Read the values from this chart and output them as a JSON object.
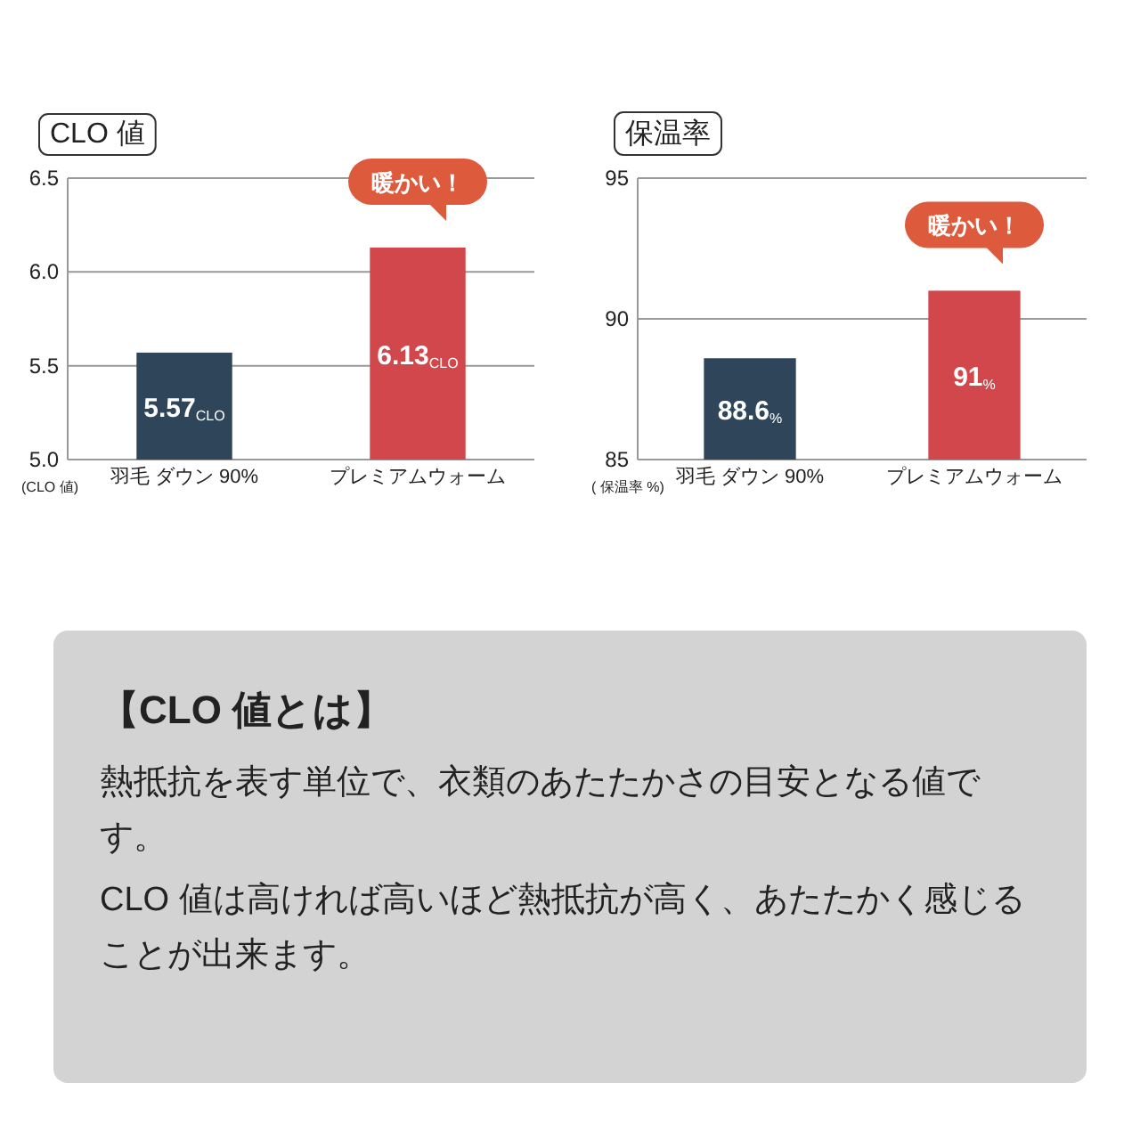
{
  "chart_data": [
    {
      "type": "bar",
      "title": "CLO 値",
      "ylabel": "(CLO 値)",
      "categories": [
        "羽毛 ダウン 90%",
        "プレミアムウォーム"
      ],
      "colors": [
        "#2f4559",
        "#d2474b"
      ],
      "values": [
        5.57,
        6.13
      ],
      "value_labels": [
        "5.57$_{CLO}$",
        "6.13$_{CLO}$"
      ],
      "ylim": [
        5.0,
        6.5
      ],
      "yticks": [
        {
          "value": 5.0,
          "label": "5.0"
        },
        5.5,
        {
          "value": 6.0,
          "label": "6.0"
        },
        6.5
      ],
      "grid": "y",
      "annotations": [
        "暖かい！"
      ]
    },
    {
      "type": "bar",
      "title": "保温率",
      "ylabel": "( 保温率 %)",
      "categories": [
        "羽毛 ダウン 90%",
        "プレミアムウォーム"
      ],
      "colors": [
        "#2f4559",
        "#d2474b"
      ],
      "values": [
        88.6,
        91
      ],
      "value_labels": [
        "88.6$_{%}$",
        "91$_{%}$"
      ],
      "ylim": [
        85,
        95
      ],
      "yticks": [
        85,
        90,
        95
      ],
      "grid": "y",
      "annotations": [
        "暖かい！"
      ]
    },
    {
      "type": "other",
      "title": "【CLO 値とは】",
      "annotations": [
        "熱抵抗を表す単位で、衣類のあたたかさの目安となる値です。",
        "CLO 値は高ければ高いほど熱抵抗が高く、あたたかく感じることが出来ます。"
      ]
    }
  ]
}
